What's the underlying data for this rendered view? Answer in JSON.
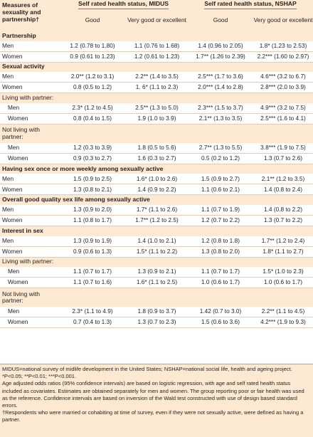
{
  "header": {
    "measures_label": "Measures of sexuality and partnership†",
    "midus_title": "Self rated health status, MIDUS",
    "nshap_title": "Self rated health status, NSHAP",
    "good": "Good",
    "very_good": "Very good or excellent"
  },
  "sections": {
    "partnership": "Partnership",
    "sexual_activity": "Sexual activity",
    "living_with": "Living with partner:",
    "not_living": "Not living with partner:",
    "sex_weekly": "Having sex once or more weekly among sexually active",
    "quality": "Overall good quality sex life among sexually active",
    "interest": "Interest in sex",
    "living_with_2": "Living with partner:",
    "not_living_2": "Not living with partner:"
  },
  "rows": {
    "partnership": [
      {
        "label": "Men",
        "m_good": "1.2 (0.78 to 1.80)",
        "m_vg": "1.1 (0.76 to 1.68)",
        "n_good": "1.4 (0.96 to 2.05)",
        "n_vg": "1.8* (1.23 to 2.53)"
      },
      {
        "label": "Women",
        "m_good": "0.9 (0.61 to 1.23)",
        "m_vg": "1.2 (0.61 to 1.23)",
        "n_good": "1.7** (1.26 to 2.39)",
        "n_vg": "2.2*** (1.60 to 2.97)"
      }
    ],
    "sexual_activity": [
      {
        "label": "Men",
        "m_good": "2.0** (1.2 to 3.1)",
        "m_vg": "2.2** (1.4 to 3.5)",
        "n_good": "2.5*** (1.7 to 3.6)",
        "n_vg": "4.6*** (3.2 to 6.7)"
      },
      {
        "label": "Women",
        "m_good": "0.8 (0.5 to 1.2)",
        "m_vg": "1. 6* (1.1 to 2.3)",
        "n_good": "2.0*** (1.4 to 2.8)",
        "n_vg": "2.8*** (2.0 to 3.9)"
      }
    ],
    "living_with": [
      {
        "label": "Men",
        "m_good": "2.3* (1.2 to 4.5)",
        "m_vg": "2.5** (1.3 to 5.0)",
        "n_good": "2.3*** (1.5 to 3.7)",
        "n_vg": "4.9*** (3.2 to 7.5)"
      },
      {
        "label": "Women",
        "m_good": "0.8 (0.4 to 1.5)",
        "m_vg": "1.9 (1.0 to 3.9)",
        "n_good": "2.1** (1.3 to 3.5)",
        "n_vg": "2.5*** (1.6 to 4.1)"
      }
    ],
    "not_living": [
      {
        "label": "Men",
        "m_good": "1.2 (0.3 to 3.9)",
        "m_vg": "1.8 (0.5 to 5.6)",
        "n_good": "2.7** (1.3 to 5.5)",
        "n_vg": "3.8*** (1.9 to 7.5)"
      },
      {
        "label": "Women",
        "m_good": "0.9 (0.3 to 2.7)",
        "m_vg": "1.6 (0.3 to 2.7)",
        "n_good": "0.5 (0.2 to 1.2)",
        "n_vg": "1.3 (0.7 to 2.6)"
      }
    ],
    "sex_weekly": [
      {
        "label": "Men",
        "m_good": "1.5 (0.9 to 2.5)",
        "m_vg": "1.6* (1.0 to 2.6)",
        "n_good": "1.5 (0.9 to 2.7)",
        "n_vg": "2.1** (1.2 to 3.5)"
      },
      {
        "label": "Women",
        "m_good": "1.3 (0.8 to 2.1)",
        "m_vg": "1.4 (0.9 to 2.2)",
        "n_good": "1.1 (0.6 to 2.1)",
        "n_vg": "1.4 (0.8 to 2.4)"
      }
    ],
    "quality": [
      {
        "label": "Men",
        "m_good": "1.3 (0.9 to 2.0)",
        "m_vg": "1.7* (1.1 to 2.6)",
        "n_good": "1.1 (0.7 to 1.9)",
        "n_vg": "1.4 (0.8 to 2.2)"
      },
      {
        "label": "Women",
        "m_good": "1.1 (0.8 to 1.7)",
        "m_vg": "1.7** (1.2 to 2.5)",
        "n_good": "1.2 (0.7 to 2.2)",
        "n_vg": "1.3 (0.7 to 2.2)"
      }
    ],
    "interest": [
      {
        "label": "Men",
        "m_good": "1.3 (0.9 to 1.9)",
        "m_vg": "1.4 (1.0 to 2.1)",
        "n_good": "1.2 (0.8 to 1.8)",
        "n_vg": "1.7** (1.2 to 2.4)"
      },
      {
        "label": "Women",
        "m_good": "0.9 (0.6 to 1.3)",
        "m_vg": "1.5* (1.1 to 2.2)",
        "n_good": "1.3 (0.8 to 2.0)",
        "n_vg": "1.8* (1.1 to 2.7)"
      }
    ],
    "living_with_2": [
      {
        "label": "Men",
        "m_good": "1.1 (0.7 to 1.7)",
        "m_vg": "1.3 (0.9 to 2.1)",
        "n_good": "1.1 (0.7 to 1.7)",
        "n_vg": "1.5* (1.0 to 2.3)"
      },
      {
        "label": "Women",
        "m_good": "1.1 (0.7 to 1.6)",
        "m_vg": "1.6* (1.1 to 2.5)",
        "n_good": "1.0 (0.6 to 1.7)",
        "n_vg": "1.0 (0.6 to 1.7)"
      }
    ],
    "not_living_2": [
      {
        "label": "Men",
        "m_good": "2.3* (1.1 to 4.9)",
        "m_vg": "1.8 (0.9 to 3.7)",
        "n_good": "1.42 (0.7 to 3.0)",
        "n_vg": "2.2** (1.1 to 4.5)"
      },
      {
        "label": "Women",
        "m_good": "0.7 (0.4 to 1.3)",
        "m_vg": "1.3 (0.7 to 2.3)",
        "n_good": "1.5 (0.6 to 3.6)",
        "n_vg": "4.2*** (1.9 to 9.3)"
      }
    ]
  },
  "notes": {
    "abbrev": "MIDUS=national survey of midlife development in the United States; NSHAP=national social life, health and ageing project.",
    "significance": "*P<0.05; **P<0.01; ***P<0.001.",
    "method": "Age adjusted odds ratios (95% confidence intervals) are based on logistic regression, with age and self rated health status included as covariates. Estimates are obtained separately for men and women. The group reporting poor or fair health was used as the reference. Confidence intervals are based on inversion of the Wald test constructed with use of design based standard errors.",
    "dagger": "†Respondents who were married or cohabiting at time of survey, even if they were not sexually active, were defined as having a partner."
  }
}
